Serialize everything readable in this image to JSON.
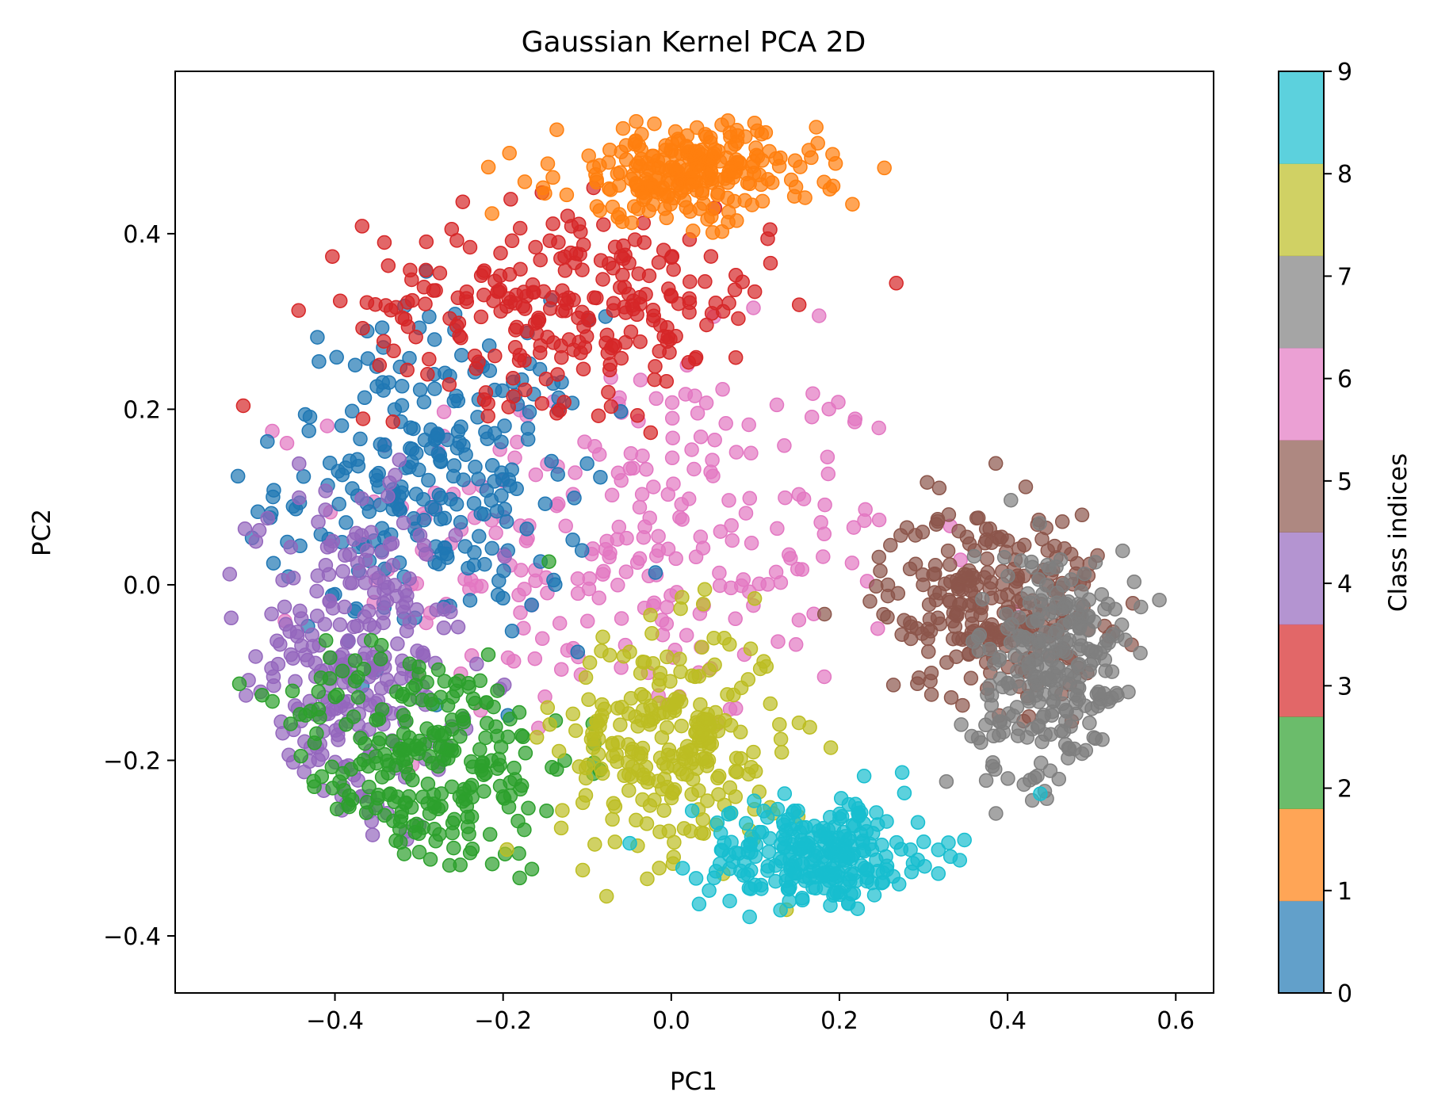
{
  "chart_data": {
    "type": "scatter",
    "title": "Gaussian Kernel PCA 2D",
    "xlabel": "PC1",
    "ylabel": "PC2",
    "xlim": [
      -0.59,
      0.645
    ],
    "ylim": [
      -0.465,
      0.585
    ],
    "x_ticks": [
      -0.4,
      -0.2,
      0.0,
      0.2,
      0.4,
      0.6
    ],
    "x_tick_labels": [
      "−0.4",
      "−0.2",
      "0.0",
      "0.2",
      "0.4",
      "0.6"
    ],
    "y_ticks": [
      -0.4,
      -0.2,
      0.0,
      0.2,
      0.4
    ],
    "y_tick_labels": [
      "−0.4",
      "−0.2",
      "0.0",
      "0.2",
      "0.4"
    ],
    "grid": false,
    "marker_alpha": 0.7,
    "colorbar": {
      "label": "Class indices",
      "range": [
        0,
        9
      ],
      "ticks": [
        0,
        1,
        2,
        3,
        4,
        5,
        6,
        7,
        8,
        9
      ],
      "tick_labels": [
        "0",
        "1",
        "2",
        "3",
        "4",
        "5",
        "6",
        "7",
        "8",
        "9"
      ]
    },
    "classes": [
      {
        "label": "0",
        "color": "#1f77b4",
        "approx_center": [
          -0.28,
          0.12
        ],
        "approx_spread": [
          0.17,
          0.17
        ]
      },
      {
        "label": "1",
        "color": "#ff7f0e",
        "approx_center": [
          0.02,
          0.47
        ],
        "approx_spread": [
          0.14,
          0.05
        ]
      },
      {
        "label": "2",
        "color": "#2ca02c",
        "approx_center": [
          -0.3,
          -0.2
        ],
        "approx_spread": [
          0.17,
          0.12
        ]
      },
      {
        "label": "3",
        "color": "#d62728",
        "approx_center": [
          -0.12,
          0.32
        ],
        "approx_spread": [
          0.22,
          0.1
        ]
      },
      {
        "label": "4",
        "color": "#9467bd",
        "approx_center": [
          -0.38,
          -0.1
        ],
        "approx_spread": [
          0.11,
          0.18
        ]
      },
      {
        "label": "5",
        "color": "#8c564b",
        "approx_center": [
          0.38,
          -0.02
        ],
        "approx_spread": [
          0.12,
          0.1
        ]
      },
      {
        "label": "6",
        "color": "#e377c2",
        "approx_center": [
          -0.05,
          0.05
        ],
        "approx_spread": [
          0.3,
          0.2
        ]
      },
      {
        "label": "7",
        "color": "#7f7f7f",
        "approx_center": [
          0.46,
          -0.1
        ],
        "approx_spread": [
          0.09,
          0.13
        ]
      },
      {
        "label": "8",
        "color": "#bcbd22",
        "approx_center": [
          0.0,
          -0.18
        ],
        "approx_spread": [
          0.12,
          0.12
        ]
      },
      {
        "label": "9",
        "color": "#17becf",
        "approx_center": [
          0.18,
          -0.31
        ],
        "approx_spread": [
          0.13,
          0.06
        ]
      }
    ]
  }
}
